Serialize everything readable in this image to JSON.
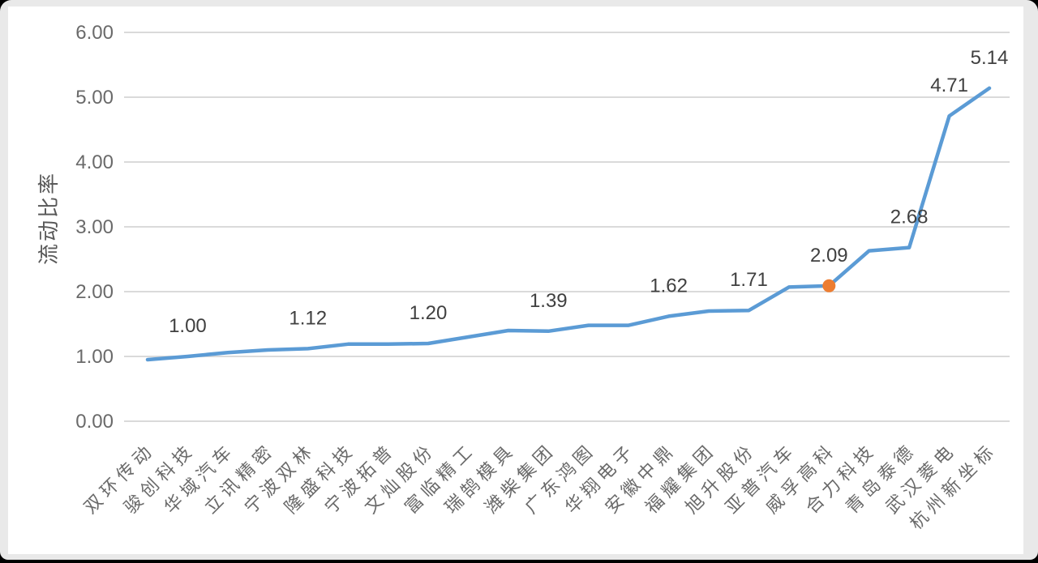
{
  "chart_data": {
    "type": "line",
    "title": "",
    "xlabel": "",
    "ylabel": "流动比率",
    "ylim": [
      0,
      6
    ],
    "grid": true,
    "legend_position": "none",
    "yticks": [
      "0.00",
      "1.00",
      "2.00",
      "3.00",
      "4.00",
      "5.00",
      "6.00"
    ],
    "categories": [
      "双环传动",
      "骏创科技",
      "华域汽车",
      "立讯精密",
      "宁波双林",
      "隆盛科技",
      "宁波拓普",
      "文灿股份",
      "富临精工",
      "瑞鹄模具",
      "潍柴集团",
      "广东鸿图",
      "华翔电子",
      "安徽中鼎",
      "福耀集团",
      "旭升股份",
      "亚普汽车",
      "威孚高科",
      "合力科技",
      "青岛泰德",
      "武汉菱电",
      "杭州新坐标"
    ],
    "values": [
      0.95,
      1.0,
      1.06,
      1.1,
      1.12,
      1.19,
      1.19,
      1.2,
      1.3,
      1.4,
      1.39,
      1.48,
      1.48,
      1.62,
      1.7,
      1.71,
      2.07,
      2.09,
      2.63,
      2.68,
      4.71,
      5.14
    ],
    "data_labels": {
      "1": "1.00",
      "4": "1.12",
      "7": "1.20",
      "10": "1.39",
      "13": "1.62",
      "15": "1.71",
      "17": "2.09",
      "19": "2.68",
      "20": "4.71",
      "21": "5.14"
    },
    "highlight_point": {
      "index": 17,
      "category": "威孚高科",
      "value": 2.09
    }
  },
  "colors": {
    "line": "#5B9BD5",
    "highlight_marker": "#ED7D31",
    "gridline": "#DADADA",
    "tick_text": "#6a6a6a",
    "category_text": "#6a6a6a",
    "data_label_text": "#404040",
    "axis_title_text": "#595959",
    "plot_background": "#FFFFFF",
    "frame": "#E9E9E9",
    "outer_background": "#000000"
  }
}
